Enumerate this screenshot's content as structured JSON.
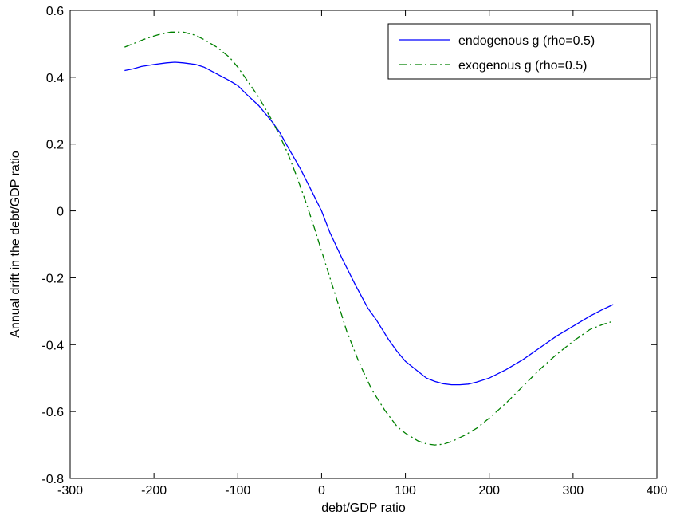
{
  "chart_data": {
    "type": "line",
    "title": "",
    "xlabel": "debt/GDP ratio",
    "ylabel": "Annual drift in the debt/GDP ratio",
    "xlim": [
      -300,
      400
    ],
    "ylim": [
      -0.8,
      0.6
    ],
    "xticks": [
      -300,
      -200,
      -100,
      0,
      100,
      200,
      300,
      400
    ],
    "yticks": [
      -0.8,
      -0.6,
      -0.4,
      -0.2,
      0,
      0.2,
      0.4,
      0.6
    ],
    "xtick_labels": [
      "-300",
      "-200",
      "-100",
      "0",
      "100",
      "200",
      "300",
      "400"
    ],
    "ytick_labels": [
      "-0.8",
      "-0.6",
      "-0.4",
      "-0.2",
      "0",
      "0.2",
      "0.4",
      "0.6"
    ],
    "grid": false,
    "legend_position": "top-right",
    "series": [
      {
        "name": "endogenous g (rho=0.5)",
        "color": "#0000ff",
        "style": "solid",
        "x": [
          -235,
          -225,
          -215,
          -200,
          -185,
          -175,
          -165,
          -150,
          -140,
          -125,
          -110,
          -100,
          -90,
          -75,
          -60,
          -50,
          -40,
          -25,
          -10,
          0,
          10,
          25,
          40,
          55,
          65,
          80,
          90,
          100,
          115,
          125,
          135,
          145,
          155,
          165,
          175,
          185,
          200,
          220,
          240,
          260,
          280,
          300,
          320,
          335,
          348
        ],
        "y": [
          0.42,
          0.425,
          0.432,
          0.438,
          0.443,
          0.445,
          0.443,
          0.438,
          0.43,
          0.41,
          0.39,
          0.375,
          0.35,
          0.315,
          0.27,
          0.235,
          0.19,
          0.125,
          0.05,
          0.0,
          -0.065,
          -0.145,
          -0.22,
          -0.29,
          -0.325,
          -0.385,
          -0.42,
          -0.45,
          -0.48,
          -0.5,
          -0.51,
          -0.517,
          -0.52,
          -0.52,
          -0.518,
          -0.512,
          -0.5,
          -0.475,
          -0.445,
          -0.41,
          -0.375,
          -0.345,
          -0.315,
          -0.295,
          -0.28
        ]
      },
      {
        "name": "exogenous g (rho=0.5)",
        "color": "#008000",
        "style": "dashdot",
        "x": [
          -235,
          -225,
          -210,
          -195,
          -180,
          -165,
          -150,
          -140,
          -125,
          -110,
          -100,
          -90,
          -75,
          -60,
          -50,
          -40,
          -30,
          -20,
          -10,
          0,
          10,
          20,
          30,
          45,
          60,
          75,
          90,
          100,
          115,
          125,
          135,
          145,
          155,
          170,
          185,
          200,
          220,
          240,
          260,
          280,
          300,
          320,
          335,
          348
        ],
        "y": [
          0.49,
          0.5,
          0.515,
          0.527,
          0.535,
          0.535,
          0.525,
          0.512,
          0.49,
          0.46,
          0.43,
          0.395,
          0.34,
          0.275,
          0.225,
          0.17,
          0.105,
          0.035,
          -0.04,
          -0.12,
          -0.2,
          -0.28,
          -0.36,
          -0.455,
          -0.535,
          -0.595,
          -0.645,
          -0.665,
          -0.688,
          -0.697,
          -0.7,
          -0.698,
          -0.69,
          -0.672,
          -0.65,
          -0.62,
          -0.575,
          -0.525,
          -0.475,
          -0.43,
          -0.39,
          -0.355,
          -0.34,
          -0.33
        ]
      }
    ]
  }
}
